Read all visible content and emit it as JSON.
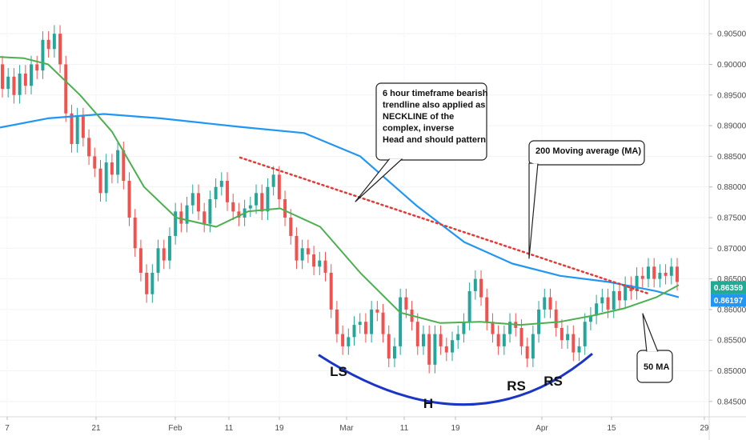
{
  "chart_data": {
    "type": "candlestick",
    "y_axis": {
      "ticks": [
        "0.84500",
        "0.85000",
        "0.85500",
        "0.86000",
        "0.86500",
        "0.87000",
        "0.87500",
        "0.88000",
        "0.88500",
        "0.89000",
        "0.89500",
        "0.90000",
        "0.90500"
      ],
      "range": [
        0.8425,
        0.9105
      ],
      "side": "right"
    },
    "x_axis": {
      "ticks": [
        "7",
        "21",
        "Feb",
        "11",
        "19",
        "Mar",
        "11",
        "19",
        "Apr",
        "15",
        "29"
      ]
    },
    "price_tags": [
      {
        "label": "0.86359",
        "value": 0.86359,
        "color": "#22ab94"
      },
      {
        "label": "0.86197",
        "value": 0.86197,
        "color": "#2196f3"
      }
    ],
    "ma200": {
      "color": "#2196f3",
      "points": [
        [
          0,
          0.8897
        ],
        [
          60,
          0.8912
        ],
        [
          130,
          0.8919
        ],
        [
          200,
          0.8912
        ],
        [
          300,
          0.8898
        ],
        [
          380,
          0.8888
        ],
        [
          450,
          0.885
        ],
        [
          520,
          0.877
        ],
        [
          580,
          0.871
        ],
        [
          640,
          0.8675
        ],
        [
          700,
          0.8655
        ],
        [
          760,
          0.8645
        ],
        [
          820,
          0.863
        ],
        [
          848,
          0.862
        ]
      ]
    },
    "ma50": {
      "color": "#4caf50",
      "points": [
        [
          0,
          0.9012
        ],
        [
          30,
          0.901
        ],
        [
          60,
          0.9
        ],
        [
          100,
          0.895
        ],
        [
          140,
          0.889
        ],
        [
          180,
          0.88
        ],
        [
          220,
          0.875
        ],
        [
          270,
          0.8735
        ],
        [
          310,
          0.876
        ],
        [
          350,
          0.8765
        ],
        [
          400,
          0.8735
        ],
        [
          450,
          0.866
        ],
        [
          500,
          0.8595
        ],
        [
          550,
          0.8578
        ],
        [
          600,
          0.858
        ],
        [
          650,
          0.8575
        ],
        [
          700,
          0.858
        ],
        [
          740,
          0.859
        ],
        [
          780,
          0.8602
        ],
        [
          820,
          0.862
        ],
        [
          848,
          0.864
        ]
      ]
    },
    "candles": [
      [
        0.9,
        0.896
      ],
      [
        0.896,
        0.898
      ],
      [
        0.898,
        0.895
      ],
      [
        0.895,
        0.8985
      ],
      [
        0.8985,
        0.8965
      ],
      [
        0.8965,
        0.9
      ],
      [
        0.9,
        0.899
      ],
      [
        0.899,
        0.904
      ],
      [
        0.904,
        0.9025
      ],
      [
        0.9025,
        0.905
      ],
      [
        0.905,
        0.9
      ],
      [
        0.9,
        0.892
      ],
      [
        0.892,
        0.887
      ],
      [
        0.887,
        0.8915
      ],
      [
        0.8915,
        0.888
      ],
      [
        0.888,
        0.885
      ],
      [
        0.885,
        0.883
      ],
      [
        0.883,
        0.879
      ],
      [
        0.879,
        0.884
      ],
      [
        0.884,
        0.882
      ],
      [
        0.882,
        0.886
      ],
      [
        0.886,
        0.881
      ],
      [
        0.881,
        0.875
      ],
      [
        0.875,
        0.87
      ],
      [
        0.87,
        0.866
      ],
      [
        0.866,
        0.8625
      ],
      [
        0.8625,
        0.866
      ],
      [
        0.866,
        0.87
      ],
      [
        0.87,
        0.868
      ],
      [
        0.868,
        0.872
      ],
      [
        0.872,
        0.876
      ],
      [
        0.876,
        0.874
      ],
      [
        0.874,
        0.877
      ],
      [
        0.877,
        0.879
      ],
      [
        0.879,
        0.876
      ],
      [
        0.876,
        0.874
      ],
      [
        0.874,
        0.878
      ],
      [
        0.878,
        0.88
      ],
      [
        0.88,
        0.881
      ],
      [
        0.881,
        0.8775
      ],
      [
        0.8775,
        0.876
      ],
      [
        0.876,
        0.875
      ],
      [
        0.875,
        0.8765
      ],
      [
        0.8765,
        0.877
      ],
      [
        0.877,
        0.879
      ],
      [
        0.879,
        0.876
      ],
      [
        0.876,
        0.88
      ],
      [
        0.88,
        0.882
      ],
      [
        0.882,
        0.878
      ],
      [
        0.878,
        0.875
      ],
      [
        0.875,
        0.872
      ],
      [
        0.872,
        0.868
      ],
      [
        0.868,
        0.87
      ],
      [
        0.87,
        0.869
      ],
      [
        0.869,
        0.867
      ],
      [
        0.867,
        0.868
      ],
      [
        0.868,
        0.866
      ],
      [
        0.866,
        0.86
      ],
      [
        0.86,
        0.856
      ],
      [
        0.856,
        0.854
      ],
      [
        0.854,
        0.8555
      ],
      [
        0.8555,
        0.8575
      ],
      [
        0.8575,
        0.858
      ],
      [
        0.858,
        0.856
      ],
      [
        0.856,
        0.86
      ],
      [
        0.86,
        0.8595
      ],
      [
        0.8595,
        0.856
      ],
      [
        0.856,
        0.852
      ],
      [
        0.852,
        0.854
      ],
      [
        0.854,
        0.862
      ],
      [
        0.862,
        0.86
      ],
      [
        0.86,
        0.858
      ],
      [
        0.858,
        0.854
      ],
      [
        0.854,
        0.856
      ],
      [
        0.856,
        0.851
      ],
      [
        0.851,
        0.856
      ],
      [
        0.856,
        0.854
      ],
      [
        0.854,
        0.853
      ],
      [
        0.853,
        0.855
      ],
      [
        0.855,
        0.856
      ],
      [
        0.856,
        0.858
      ],
      [
        0.858,
        0.863
      ],
      [
        0.863,
        0.865
      ],
      [
        0.865,
        0.862
      ],
      [
        0.862,
        0.858
      ],
      [
        0.858,
        0.856
      ],
      [
        0.856,
        0.854
      ],
      [
        0.854,
        0.856
      ],
      [
        0.856,
        0.858
      ],
      [
        0.858,
        0.857
      ],
      [
        0.857,
        0.854
      ],
      [
        0.854,
        0.852
      ],
      [
        0.852,
        0.856
      ],
      [
        0.856,
        0.86
      ],
      [
        0.86,
        0.862
      ],
      [
        0.862,
        0.86
      ],
      [
        0.86,
        0.857
      ],
      [
        0.857,
        0.855
      ],
      [
        0.855,
        0.856
      ],
      [
        0.856,
        0.853
      ],
      [
        0.853,
        0.854
      ],
      [
        0.854,
        0.858
      ],
      [
        0.858,
        0.859
      ],
      [
        0.859,
        0.861
      ],
      [
        0.861,
        0.862
      ],
      [
        0.862,
        0.86
      ],
      [
        0.86,
        0.863
      ],
      [
        0.863,
        0.8615
      ],
      [
        0.8615,
        0.864
      ],
      [
        0.864,
        0.863
      ],
      [
        0.863,
        0.8655
      ],
      [
        0.8655,
        0.865
      ],
      [
        0.865,
        0.867
      ],
      [
        0.867,
        0.865
      ],
      [
        0.865,
        0.866
      ],
      [
        0.866,
        0.8655
      ],
      [
        0.8655,
        0.867
      ],
      [
        0.867,
        0.8645
      ]
    ],
    "neckline": {
      "color": "#e53935",
      "style": "dotted",
      "from": [
        300,
        0.8848
      ],
      "to": [
        810,
        0.8626
      ]
    },
    "arc": {
      "color": "#1a35c8",
      "from": [
        398,
        0.8526
      ],
      "to": [
        740,
        0.8528
      ],
      "bottom": [
        580,
        0.8445
      ]
    },
    "annotations": [
      {
        "id": "neckline-note",
        "lines": [
          "6 hour timeframe bearish",
          "trendline also applied as",
          "NECKLINE of the",
          "complex, inverse",
          "Head and should pattern"
        ]
      },
      {
        "id": "ma200-note",
        "lines": [
          "200 Moving average (MA)"
        ]
      },
      {
        "id": "ma50-note",
        "lines": [
          "50 MA"
        ]
      }
    ],
    "pattern_labels": [
      "LS",
      "H",
      "RS",
      "RS"
    ]
  }
}
